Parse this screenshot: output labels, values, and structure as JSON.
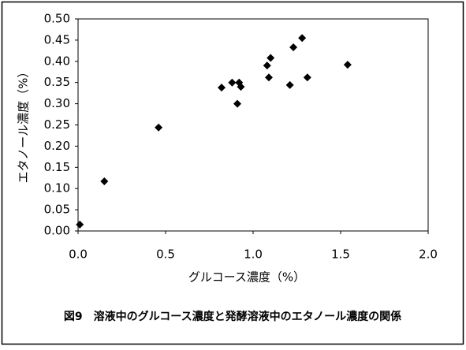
{
  "chart_data": {
    "type": "scatter",
    "x_label": "グルコース濃度（%）",
    "y_label": "エタノール濃度（%）",
    "caption": "図9　溶液中のグルコース濃度と発酵溶液中のエタノール濃度の関係",
    "x": [
      0.01,
      0.15,
      0.46,
      0.82,
      0.88,
      0.92,
      0.93,
      0.91,
      1.08,
      1.09,
      1.1,
      1.21,
      1.23,
      1.28,
      1.31,
      1.54
    ],
    "values": [
      0.015,
      0.117,
      0.244,
      0.338,
      0.35,
      0.35,
      0.34,
      0.3,
      0.39,
      0.362,
      0.408,
      0.344,
      0.433,
      0.455,
      0.362,
      0.392
    ],
    "color": "#000000",
    "xlim": [
      0,
      2
    ],
    "xticks": [
      {
        "value": 0,
        "label": "0.0"
      },
      0.5,
      {
        "value": 1,
        "label": "1.0"
      },
      1.5,
      {
        "value": 2,
        "label": "2.0"
      }
    ],
    "ylim": [
      0,
      0.5
    ],
    "yticks": [
      {
        "value": 0,
        "label": "0.00"
      },
      {
        "value": 0.05,
        "label": "0.05"
      },
      {
        "value": 0.1,
        "label": "0.10"
      },
      {
        "value": 0.15,
        "label": "0.15"
      },
      {
        "value": 0.2,
        "label": "0.20"
      },
      {
        "value": 0.25,
        "label": "0.25"
      },
      {
        "value": 0.3,
        "label": "0.30"
      },
      {
        "value": 0.35,
        "label": "0.35"
      },
      {
        "value": 0.4,
        "label": "0.40"
      },
      {
        "value": 0.45,
        "label": "0.45"
      },
      {
        "value": 0.5,
        "label": "0.50"
      }
    ],
    "grid": false
  }
}
